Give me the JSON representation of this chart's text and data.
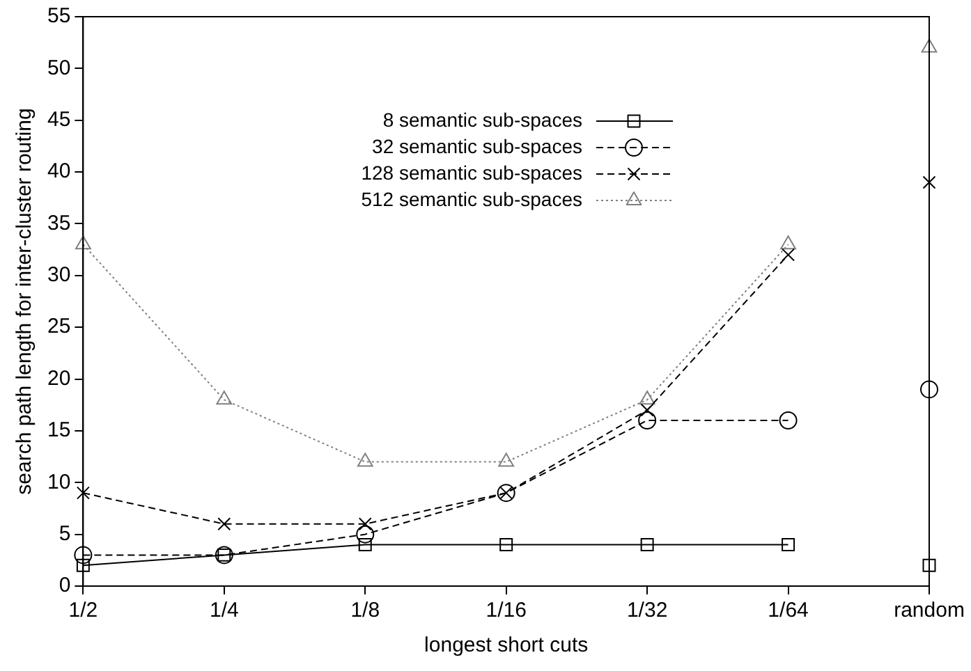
{
  "chart_data": {
    "type": "line",
    "xlabel": "longest short cuts",
    "ylabel": "search path length for inter-cluster routing",
    "categories": [
      "1/2",
      "1/4",
      "1/8",
      "1/16",
      "1/32",
      "1/64",
      "random"
    ],
    "ylim": [
      0,
      55
    ],
    "yticks": [
      0,
      5,
      10,
      15,
      20,
      25,
      30,
      35,
      40,
      45,
      50,
      55
    ],
    "grid": false,
    "legend": "top left",
    "series": [
      {
        "name": "8 semantic sub-spaces",
        "color": "#000000",
        "marker": "square",
        "line_style": "solid",
        "values": [
          2,
          3,
          4,
          4,
          4,
          4,
          null
        ]
      },
      {
        "name": "32 semantic sub-spaces",
        "color": "#000000",
        "marker": "circle",
        "line_style": "dashed",
        "values": [
          3,
          3,
          5,
          9,
          16,
          16,
          null
        ]
      },
      {
        "name": "128 semantic sub-spaces",
        "color": "#000000",
        "marker": "cross",
        "line_style": "dashed",
        "values": [
          9,
          6,
          6,
          9,
          17,
          32,
          null
        ]
      },
      {
        "name": "512 semantic sub-spaces",
        "color": "#808080",
        "marker": "triangle",
        "line_style": "dotted",
        "values": [
          33,
          18,
          12,
          12,
          18,
          33,
          null
        ]
      },
      {
        "type": "scatter",
        "color": "#000000",
        "marker": "square",
        "x": [
          "random"
        ],
        "values": [
          2
        ]
      },
      {
        "type": "scatter",
        "color": "#000000",
        "marker": "circle",
        "x": [
          "random"
        ],
        "values": [
          19
        ]
      },
      {
        "type": "scatter",
        "color": "#000000",
        "marker": "cross",
        "x": [
          "random"
        ],
        "values": [
          39
        ]
      },
      {
        "type": "scatter",
        "color": "#808080",
        "marker": "triangle",
        "x": [
          "random"
        ],
        "values": [
          52
        ]
      }
    ]
  }
}
